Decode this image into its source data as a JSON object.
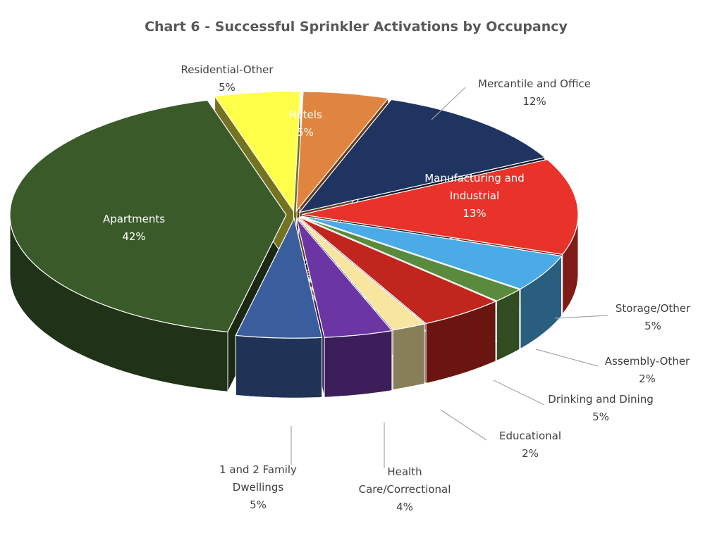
{
  "chart_data": {
    "type": "pie",
    "title": "Chart 6 - Successful Sprinkler Activations by Occupancy",
    "slices": [
      {
        "label": "Residential-Other",
        "value": 5,
        "value_label": "5%",
        "color": "#ffff4a"
      },
      {
        "label": "Hotels",
        "value": 5,
        "value_label": "5%",
        "color": "#e0853f"
      },
      {
        "label": "Mercantile and Office",
        "value": 12,
        "value_label": "12%",
        "color": "#1f3460"
      },
      {
        "label": "Manufacturing and Industrial",
        "value": 13,
        "value_label": "13%",
        "color": "#e8322a"
      },
      {
        "label": "Storage/Other",
        "value": 5,
        "value_label": "5%",
        "color": "#4aabe6"
      },
      {
        "label": "Assembly-Other",
        "value": 2,
        "value_label": "2%",
        "color": "#5a8a3e"
      },
      {
        "label": "Drinking and Dining",
        "value": 5,
        "value_label": "5%",
        "color": "#c0261d"
      },
      {
        "label": "Educational",
        "value": 2,
        "value_label": "2%",
        "color": "#f8e5a0"
      },
      {
        "label": "Health Care/Correctional",
        "value": 4,
        "value_label": "4%",
        "color": "#6b36a4"
      },
      {
        "label": "1 and 2 Family Dwellings",
        "value": 5,
        "value_label": "5%",
        "color": "#3a5d9e"
      },
      {
        "label": "Apartments",
        "value": 42,
        "value_label": "42%",
        "color": "#3b5a2a"
      }
    ]
  }
}
